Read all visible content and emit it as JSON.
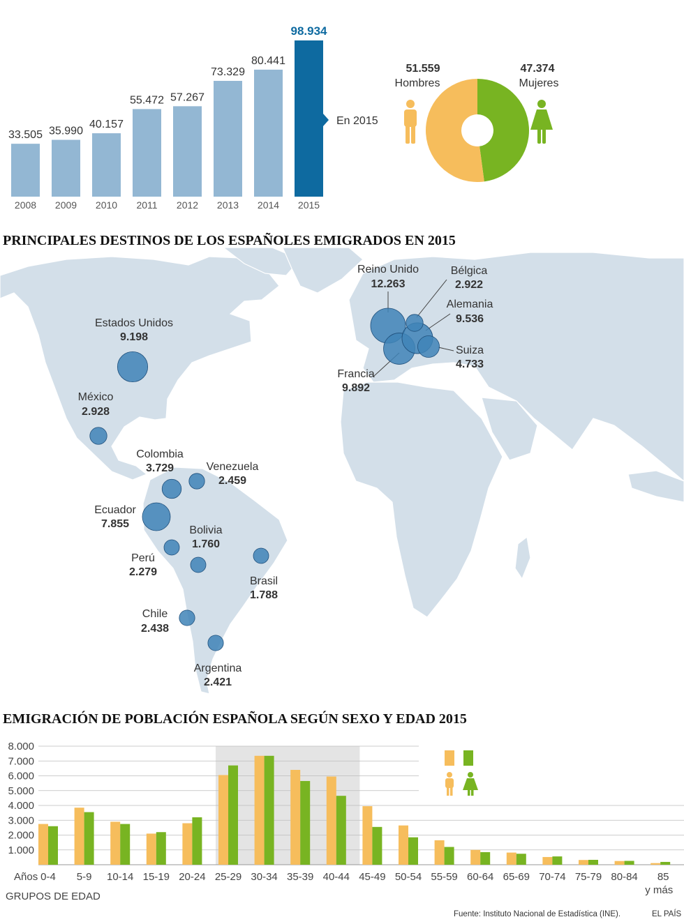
{
  "colors": {
    "bar_light": "#93b7d3",
    "bar_dark": "#0e6aa0",
    "value_dark": "#0e6aa0",
    "hombres": "#f6bd5c",
    "mujeres": "#78b422",
    "map_land": "#d3dfe9",
    "map_border": "#ffffff",
    "bubble": "#3f84b7",
    "bubble_dark": "#1f4f7b",
    "shade": "#e4e4e4",
    "grid": "#bdbdbd"
  },
  "chart_data": [
    {
      "type": "bar",
      "categories": [
        "2008",
        "2009",
        "2010",
        "2011",
        "2012",
        "2013",
        "2014",
        "2015"
      ],
      "values": [
        33505,
        35990,
        40157,
        55472,
        57267,
        73329,
        80441,
        98934
      ],
      "value_labels": [
        "33.505",
        "35.990",
        "40.157",
        "55.472",
        "57.267",
        "73.329",
        "80.441",
        "98.934"
      ],
      "highlight_index": 7,
      "annotation": "En 2015",
      "ylim": [
        0,
        100000
      ]
    },
    {
      "type": "pie",
      "slices": [
        {
          "name": "Hombres",
          "value": 51559,
          "label": "51.559",
          "color": "#f6bd5c"
        },
        {
          "name": "Mujeres",
          "value": 47374,
          "label": "47.374",
          "color": "#78b422"
        }
      ]
    },
    {
      "type": "bubble-map",
      "title": "PRINCIPALES DESTINOS DE LOS ESPAÑOLES EMIGRADOS EN 2015",
      "points": [
        {
          "name": "Estados Unidos",
          "value": 9198,
          "label": "9.198"
        },
        {
          "name": "México",
          "value": 2928,
          "label": "2.928"
        },
        {
          "name": "Colombia",
          "value": 3729,
          "label": "3.729"
        },
        {
          "name": "Venezuela",
          "value": 2459,
          "label": "2.459"
        },
        {
          "name": "Ecuador",
          "value": 7855,
          "label": "7.855"
        },
        {
          "name": "Bolivia",
          "value": 1760,
          "label": "1.760"
        },
        {
          "name": "Perú",
          "value": 2279,
          "label": "2.279"
        },
        {
          "name": "Brasil",
          "value": 1788,
          "label": "1.788"
        },
        {
          "name": "Chile",
          "value": 2438,
          "label": "2.438"
        },
        {
          "name": "Argentina",
          "value": 2421,
          "label": "2.421"
        },
        {
          "name": "Reino Unido",
          "value": 12263,
          "label": "12.263"
        },
        {
          "name": "Bélgica",
          "value": 2922,
          "label": "2.922"
        },
        {
          "name": "Alemania",
          "value": 9536,
          "label": "9.536"
        },
        {
          "name": "Suiza",
          "value": 4733,
          "label": "4.733"
        },
        {
          "name": "Francia",
          "value": 9892,
          "label": "9.892"
        }
      ]
    },
    {
      "type": "bar",
      "title": "EMIGRACIÓN DE POBLACIÓN ESPAÑOLA SEGÚN SEXO Y EDAD 2015",
      "xlabel": "GRUPOS DE EDAD",
      "x_prefix": "Años",
      "categories": [
        "0-4",
        "5-9",
        "10-14",
        "15-19",
        "20-24",
        "25-29",
        "30-34",
        "35-39",
        "40-44",
        "45-49",
        "50-54",
        "55-59",
        "60-64",
        "65-69",
        "70-74",
        "75-79",
        "80-84",
        "85 y más"
      ],
      "series": [
        {
          "name": "Hombres",
          "color": "#f6bd5c",
          "values": [
            2750,
            3850,
            2900,
            2100,
            2800,
            6050,
            7350,
            6400,
            5950,
            3950,
            2650,
            1650,
            1000,
            820,
            520,
            320,
            250,
            110
          ]
        },
        {
          "name": "Mujeres",
          "color": "#78b422",
          "values": [
            2600,
            3550,
            2750,
            2200,
            3200,
            6700,
            7350,
            5650,
            4650,
            2550,
            1850,
            1200,
            850,
            740,
            560,
            330,
            260,
            190
          ]
        }
      ],
      "highlight_range": [
        "25-29",
        "40-44"
      ],
      "yticks": [
        "1.000",
        "2.000",
        "3.000",
        "4.000",
        "5.000",
        "6.000",
        "7.000",
        "8.000"
      ],
      "ylim": [
        0,
        8000
      ]
    }
  ],
  "texts": {
    "en2015": "En 2015",
    "hombres_value": "51.559",
    "hombres_label": "Hombres",
    "mujeres_value": "47.374",
    "mujeres_label": "Mujeres",
    "map_title": "PRINCIPALES DESTINOS DE LOS ESPAÑOLES EMIGRADOS EN 2015",
    "age_title": "EMIGRACIÓN DE POBLACIÓN ESPAÑOLA SEGÚN SEXO Y EDAD 2015",
    "age_prefix": "Años",
    "age_xlabel": "GRUPOS DE EDAD",
    "source": "Fuente: Instituto Nacional de Estadística (INE).",
    "brand": "EL PAÍS"
  }
}
